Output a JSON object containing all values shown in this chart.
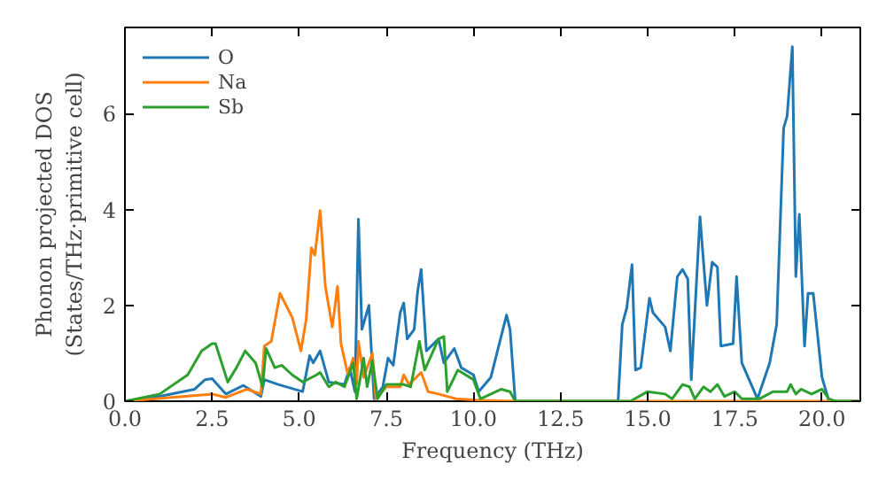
{
  "chart_data": {
    "type": "line",
    "xlabel": "Frequency (THz)",
    "ylabel": "Phonon projected DOS\n(States/THz·primitive cell)",
    "xlim": [
      0,
      21.1
    ],
    "ylim": [
      0,
      7.8
    ],
    "xticks": [
      {
        "value": 0,
        "label": "0.0"
      },
      2.5,
      {
        "value": 5,
        "label": "5.0"
      },
      7.5,
      {
        "value": 10,
        "label": "10.0"
      },
      12.5,
      {
        "value": 15,
        "label": "15.0"
      },
      17.5,
      {
        "value": 20,
        "label": "20.0"
      }
    ],
    "yticks": [
      0,
      2,
      4,
      6
    ],
    "legend": "top left",
    "grid": false,
    "marker": "none",
    "line_style": "solid",
    "series": [
      {
        "name": "O",
        "color": "#1f77b4",
        "x": [
          0,
          1.0,
          2.0,
          2.3,
          2.5,
          2.9,
          3.4,
          3.9,
          4.0,
          4.4,
          5.1,
          5.3,
          5.4,
          5.6,
          5.85,
          6.3,
          6.45,
          6.6,
          6.7,
          6.8,
          7.0,
          7.15,
          7.4,
          7.55,
          7.7,
          7.9,
          8.0,
          8.1,
          8.3,
          8.4,
          8.5,
          8.65,
          9.0,
          9.15,
          9.45,
          9.65,
          10.0,
          10.15,
          10.5,
          10.95,
          11.05,
          11.2,
          14.15,
          14.27,
          14.4,
          14.55,
          14.65,
          14.8,
          15.05,
          15.15,
          15.5,
          15.65,
          15.85,
          16.0,
          16.15,
          16.25,
          16.5,
          16.7,
          16.85,
          17.0,
          17.1,
          17.45,
          17.55,
          17.7,
          18.15,
          18.5,
          18.7,
          18.9,
          19.0,
          19.15,
          19.25,
          19.35,
          19.5,
          19.6,
          19.75,
          20.0,
          20.2,
          21.1
        ],
        "values": [
          0,
          0.1,
          0.25,
          0.45,
          0.47,
          0.15,
          0.33,
          0.1,
          0.45,
          0.35,
          0.2,
          0.95,
          0.8,
          1.05,
          0.4,
          0.35,
          0.7,
          0.2,
          3.8,
          1.5,
          2.0,
          0.05,
          0.3,
          0.9,
          0.75,
          1.85,
          2.05,
          1.3,
          1.5,
          2.3,
          2.75,
          1.05,
          1.3,
          0.8,
          1.1,
          0.7,
          0.55,
          0.2,
          0.5,
          1.8,
          1.5,
          0,
          0,
          1.6,
          1.95,
          2.85,
          0.65,
          0.7,
          2.15,
          1.85,
          1.55,
          1.05,
          2.6,
          2.75,
          2.55,
          0.45,
          3.85,
          2.0,
          2.9,
          2.8,
          1.15,
          1.2,
          2.6,
          0.8,
          0.05,
          0.8,
          1.6,
          5.7,
          5.95,
          7.4,
          2.6,
          3.9,
          1.15,
          2.25,
          2.25,
          0.5,
          0,
          0
        ]
      },
      {
        "name": "Na",
        "color": "#ff7f0e",
        "x": [
          0,
          2.5,
          2.9,
          3.5,
          3.9,
          4.0,
          4.2,
          4.45,
          4.8,
          5.05,
          5.2,
          5.35,
          5.45,
          5.6,
          5.75,
          5.95,
          6.1,
          6.2,
          6.4,
          6.55,
          6.65,
          6.7,
          6.85,
          7.1,
          7.2,
          7.5,
          7.9,
          8.0,
          8.15,
          8.5,
          8.7,
          9.0,
          9.5,
          10.2,
          11.2,
          21.1
        ],
        "values": [
          0,
          0.15,
          0.08,
          0.25,
          0.15,
          1.15,
          1.25,
          2.25,
          1.75,
          1.05,
          1.7,
          3.2,
          3.05,
          3.98,
          2.4,
          1.55,
          2.4,
          1.2,
          0.55,
          0.9,
          0.35,
          1.25,
          0.5,
          1.0,
          0.05,
          0.3,
          0.3,
          0.55,
          0.35,
          0.6,
          0.2,
          0.15,
          0.05,
          0.02,
          0,
          0
        ]
      },
      {
        "name": "Sb",
        "color": "#2ca02c",
        "x": [
          0,
          1.0,
          1.8,
          2.2,
          2.5,
          2.6,
          2.95,
          3.2,
          3.45,
          3.75,
          3.95,
          4.05,
          4.3,
          4.5,
          4.8,
          5.1,
          5.5,
          5.6,
          5.85,
          6.05,
          6.3,
          6.55,
          6.65,
          6.85,
          6.95,
          7.1,
          7.25,
          7.5,
          8.0,
          8.2,
          8.45,
          8.6,
          9.0,
          9.15,
          9.25,
          9.55,
          10.0,
          10.2,
          10.8,
          11.05,
          11.2,
          14.5,
          15.0,
          15.5,
          15.7,
          16.0,
          16.2,
          16.35,
          16.6,
          16.8,
          17.0,
          17.2,
          17.5,
          17.7,
          18.2,
          18.6,
          19.0,
          19.1,
          19.25,
          19.4,
          19.7,
          20.0,
          20.2,
          20.4,
          21.1
        ],
        "values": [
          0,
          0.15,
          0.55,
          1.05,
          1.2,
          1.2,
          0.4,
          0.7,
          1.05,
          0.8,
          0.3,
          1.1,
          0.7,
          0.75,
          0.55,
          0.4,
          0.55,
          0.6,
          0.3,
          0.4,
          0.3,
          0.8,
          0.05,
          0.9,
          0.3,
          0.85,
          0.05,
          0.35,
          0.35,
          0.3,
          1.25,
          0.65,
          1.3,
          1.35,
          0.2,
          0.65,
          0.45,
          0.05,
          0.25,
          0.2,
          0,
          0,
          0.2,
          0.15,
          0.05,
          0.35,
          0.3,
          0.05,
          0.3,
          0.2,
          0.35,
          0.1,
          0.2,
          0.05,
          0.05,
          0.2,
          0.2,
          0.35,
          0.15,
          0.25,
          0.15,
          0.25,
          0.05,
          0,
          0
        ]
      }
    ]
  }
}
